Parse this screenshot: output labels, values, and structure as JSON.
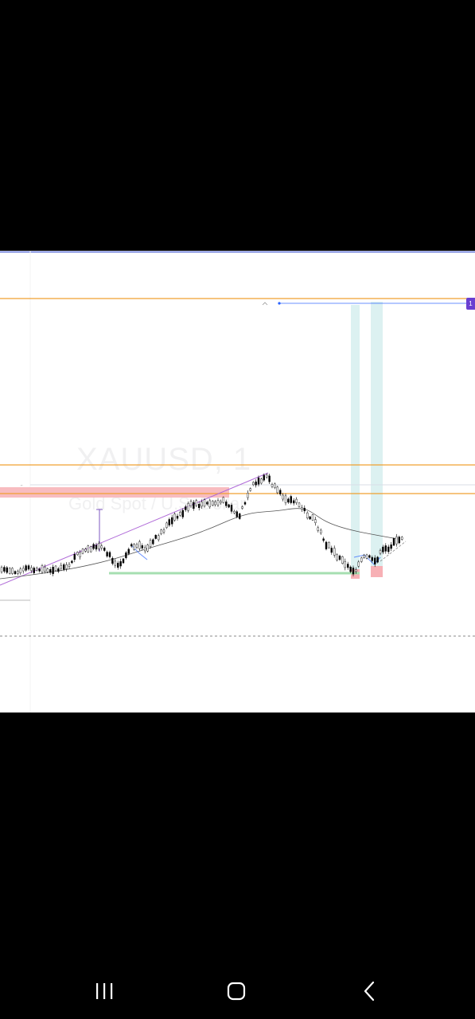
{
  "chart": {
    "symbol_watermark": "XAUUSD, 1",
    "description_watermark": "Gold Spot / U.S. Dollar",
    "price_badge": "1",
    "colors": {
      "background": "#ffffff",
      "orange_levels": "#f0a030",
      "trendline": "#b06ad8",
      "zone_red": "#f7b0b5",
      "zone_teal": "#bfe6e6",
      "zone_green": "#b8e6c0",
      "candles": "#000000",
      "ma": "#555555",
      "blue_line": "#2962ff",
      "badge": "#6a3fd1"
    }
  },
  "nav": {
    "recents_icon": "recents-icon",
    "home_icon": "home-icon",
    "back_icon": "back-icon"
  }
}
